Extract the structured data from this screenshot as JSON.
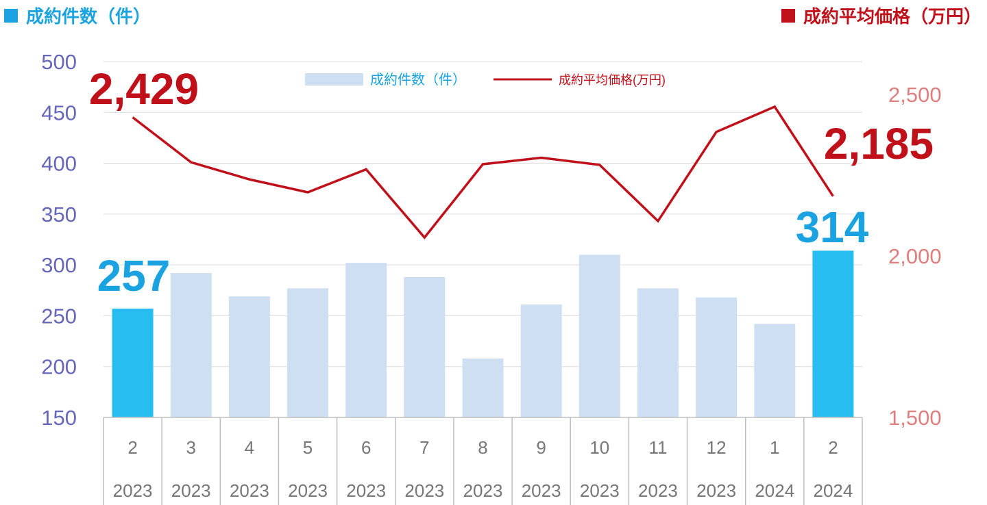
{
  "header": {
    "left_label": "成約件数（件）",
    "right_label": "成約平均価格（万円）"
  },
  "colors": {
    "bar_default": "#cfdff2",
    "bar_highlight": "#27bdf0",
    "line": "#c0101a",
    "left_axis_text": "#6666bb",
    "right_axis_text": "#e07e7e",
    "bar_callout": "#1aa3e0",
    "line_callout": "#c0101a"
  },
  "chart_data": {
    "type": "bar",
    "categories": [
      {
        "month": "2",
        "year": "2023"
      },
      {
        "month": "3",
        "year": "2023"
      },
      {
        "month": "4",
        "year": "2023"
      },
      {
        "month": "5",
        "year": "2023"
      },
      {
        "month": "6",
        "year": "2023"
      },
      {
        "month": "7",
        "year": "2023"
      },
      {
        "month": "8",
        "year": "2023"
      },
      {
        "month": "9",
        "year": "2023"
      },
      {
        "month": "10",
        "year": "2023"
      },
      {
        "month": "11",
        "year": "2023"
      },
      {
        "month": "12",
        "year": "2023"
      },
      {
        "month": "1",
        "year": "2024"
      },
      {
        "month": "2",
        "year": "2024"
      }
    ],
    "series": [
      {
        "name": "成約件数（件）",
        "type": "bar",
        "axis": "left",
        "values": [
          257,
          292,
          269,
          277,
          302,
          288,
          208,
          261,
          310,
          277,
          268,
          242,
          314
        ],
        "highlight_indices": [
          0,
          12
        ]
      },
      {
        "name": "成約平均価格(万円)",
        "type": "line",
        "axis": "right",
        "values": [
          2429,
          2290,
          2237,
          2197,
          2268,
          2057,
          2284,
          2304,
          2282,
          2108,
          2384,
          2462,
          2185
        ]
      }
    ],
    "left_axis": {
      "min": 150,
      "max": 500,
      "ticks": [
        "150",
        "200",
        "250",
        "300",
        "350",
        "400",
        "450",
        "500"
      ]
    },
    "right_axis": {
      "min": 1500,
      "max": 2600,
      "ticks": [
        "1,500",
        "2,000",
        "2,500"
      ]
    },
    "callouts": {
      "bar_first": "257",
      "bar_last": "314",
      "line_first": "2,429",
      "line_last": "2,185"
    },
    "legend": {
      "position": "top-center"
    },
    "grid": true
  }
}
